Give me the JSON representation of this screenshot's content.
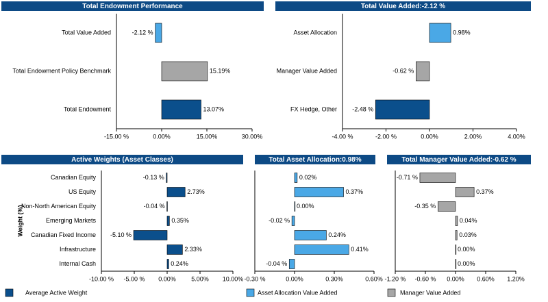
{
  "chart_data": [
    {
      "type": "bar",
      "orientation": "horizontal",
      "title": "Total Endowment Performance",
      "categories": [
        "Total Value Added",
        "Total Endowment Policy Benchmark",
        "Total Endowment"
      ],
      "values": [
        -2.12,
        15.19,
        13.07
      ],
      "value_labels": [
        "-2.12 %",
        "15.19%",
        "13.07%"
      ],
      "colors": [
        "#4aa8e6",
        "#a6a6a6",
        "#0b4f8c"
      ],
      "xlim": [
        -15,
        30
      ],
      "xticks": [
        {
          "value": -15,
          "label": "-15.00 %"
        },
        {
          "value": 0,
          "label": "0.00%"
        },
        {
          "value": 15,
          "label": "15.00%"
        },
        {
          "value": 30,
          "label": "30.00%"
        }
      ]
    },
    {
      "type": "bar",
      "orientation": "horizontal",
      "title": "Total Value Added:-2.12 %",
      "categories": [
        "Asset Allocation",
        "Manager Value Added",
        "FX Hedge, Other"
      ],
      "values": [
        0.98,
        -0.62,
        -2.48
      ],
      "value_labels": [
        "0.98%",
        "-0.62 %",
        "-2.48 %"
      ],
      "colors": [
        "#4aa8e6",
        "#a6a6a6",
        "#0b4f8c"
      ],
      "xlim": [
        -4,
        4
      ],
      "xticks": [
        {
          "value": -4,
          "label": "-4.00 %"
        },
        {
          "value": -2,
          "label": "-2.00 %"
        },
        {
          "value": 0,
          "label": "0.00%"
        },
        {
          "value": 2,
          "label": "2.00%"
        },
        {
          "value": 4,
          "label": "4.00%"
        }
      ]
    },
    {
      "type": "bar",
      "orientation": "horizontal",
      "title": "Active Weights (Asset Classes)",
      "y_label": "Weight (%)",
      "categories": [
        "Canadian Equity",
        "US Equity",
        "Non-North American Equity",
        "Emerging Markets",
        "Canadian Fixed Income",
        "Infrastructure",
        "Internal Cash"
      ],
      "series": [
        {
          "name": "Average Active Weight",
          "color": "#0b4f8c",
          "values": [
            -0.13,
            2.73,
            -0.04,
            0.35,
            -5.1,
            2.33,
            0.24
          ],
          "value_labels": [
            "-0.13 %",
            "2.73%",
            "-0.04 %",
            "0.35%",
            "-5.10 %",
            "2.33%",
            "0.24%"
          ]
        }
      ],
      "xlim": [
        -10,
        10
      ],
      "xticks": [
        {
          "value": -10,
          "label": "-10.00 %"
        },
        {
          "value": -5,
          "label": "-5.00 %"
        },
        {
          "value": 0,
          "label": "0.00%"
        },
        {
          "value": 5,
          "label": "5.00%"
        },
        {
          "value": 10,
          "label": "10.00%"
        }
      ]
    },
    {
      "type": "bar",
      "orientation": "horizontal",
      "title": "Total Asset Allocation:0.98%",
      "series": [
        {
          "name": "Asset Allocation Value Added",
          "color": "#4aa8e6",
          "values": [
            0.02,
            0.37,
            0.0,
            -0.02,
            0.24,
            0.41,
            -0.04
          ],
          "value_labels": [
            "0.02%",
            "0.37%",
            "0.00%",
            "-0.02 %",
            "0.24%",
            "0.41%",
            "-0.04 %"
          ]
        }
      ],
      "xlim": [
        -0.3,
        0.6
      ],
      "xticks": [
        {
          "value": -0.3,
          "label": "-0.30 %"
        },
        {
          "value": 0,
          "label": "0.00%"
        },
        {
          "value": 0.3,
          "label": "0.30%"
        },
        {
          "value": 0.6,
          "label": "0.60%"
        }
      ]
    },
    {
      "type": "bar",
      "orientation": "horizontal",
      "title": "Total Manager Value Added:-0.62 %",
      "series": [
        {
          "name": "Manager Value Added",
          "color": "#a6a6a6",
          "values": [
            -0.71,
            0.37,
            -0.35,
            0.04,
            0.03,
            0.0,
            0.0
          ],
          "value_labels": [
            "-0.71 %",
            "0.37%",
            "-0.35 %",
            "0.04%",
            "0.03%",
            "0.00%",
            "0.00%"
          ]
        }
      ],
      "xlim": [
        -1.2,
        1.2
      ],
      "xticks": [
        {
          "value": -1.2,
          "label": "-1.20 %"
        },
        {
          "value": -0.6,
          "label": "-0.60 %"
        },
        {
          "value": 0,
          "label": "0.00%"
        },
        {
          "value": 0.6,
          "label": "0.60%"
        },
        {
          "value": 1.2,
          "label": "1.20%"
        }
      ]
    }
  ]
}
